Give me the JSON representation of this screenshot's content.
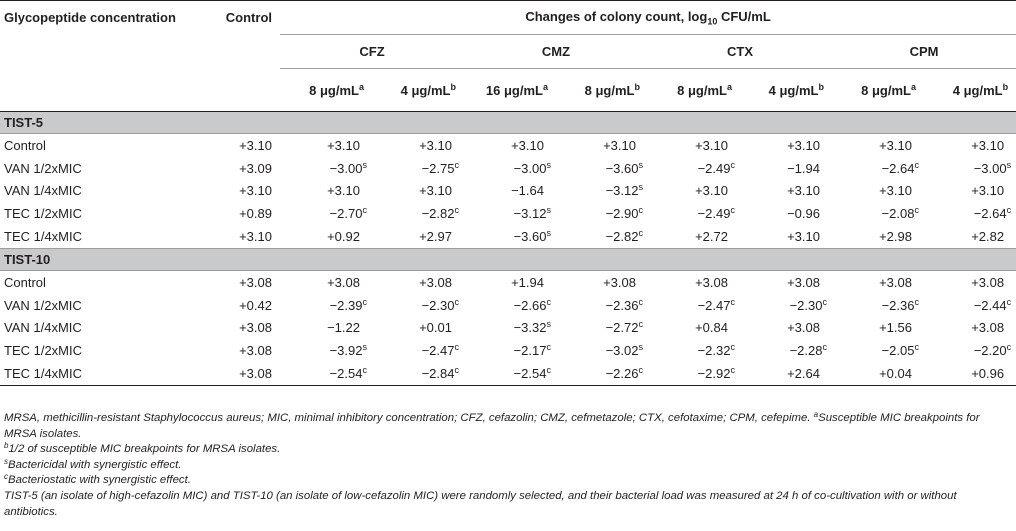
{
  "header": {
    "col_glyco": "Glycopeptide concentration",
    "col_control": "Control",
    "col_changes_prefix": "Changes of colony count, log",
    "col_changes_sub": "10",
    "col_changes_suffix": " CFU/mL",
    "groups": [
      "CFZ",
      "CMZ",
      "CTX",
      "CPM"
    ],
    "doses": [
      {
        "value": "8 μg/mL",
        "mark": "a"
      },
      {
        "value": "4 μg/mL",
        "mark": "b"
      },
      {
        "value": "16 μg/mL",
        "mark": "a"
      },
      {
        "value": "8 μg/mL",
        "mark": "b"
      },
      {
        "value": "8 μg/mL",
        "mark": "a"
      },
      {
        "value": "4 μg/mL",
        "mark": "b"
      },
      {
        "value": "8 μg/mL",
        "mark": "a"
      },
      {
        "value": "4 μg/mL",
        "mark": "b"
      }
    ]
  },
  "sections": [
    {
      "title": "TIST-5",
      "rows": [
        {
          "label": "Control",
          "control": "+3.10",
          "cells": [
            [
              "+3.10",
              ""
            ],
            [
              "+3.10",
              ""
            ],
            [
              "+3.10",
              ""
            ],
            [
              "+3.10",
              ""
            ],
            [
              "+3.10",
              ""
            ],
            [
              "+3.10",
              ""
            ],
            [
              "+3.10",
              ""
            ],
            [
              "+3.10",
              ""
            ]
          ]
        },
        {
          "label": "VAN 1/2xMIC",
          "control": "+3.09",
          "cells": [
            [
              "−3.00",
              "s"
            ],
            [
              "−2.75",
              "c"
            ],
            [
              "−3.00",
              "s"
            ],
            [
              "−3.60",
              "s"
            ],
            [
              "−2.49",
              "c"
            ],
            [
              "−1.94",
              ""
            ],
            [
              "−2.64",
              "c"
            ],
            [
              "−3.00",
              "s"
            ]
          ]
        },
        {
          "label": "VAN 1/4xMIC",
          "control": "+3.10",
          "cells": [
            [
              "+3.10",
              ""
            ],
            [
              "+3.10",
              ""
            ],
            [
              "−1.64",
              ""
            ],
            [
              "−3.12",
              "s"
            ],
            [
              "+3.10",
              ""
            ],
            [
              "+3.10",
              ""
            ],
            [
              "+3.10",
              ""
            ],
            [
              "+3.10",
              ""
            ]
          ]
        },
        {
          "label": "TEC 1/2xMIC",
          "control": "+0.89",
          "cells": [
            [
              "−2.70",
              "c"
            ],
            [
              "−2.82",
              "c"
            ],
            [
              "−3.12",
              "s"
            ],
            [
              "−2.90",
              "c"
            ],
            [
              "−2.49",
              "c"
            ],
            [
              "−0.96",
              ""
            ],
            [
              "−2.08",
              "c"
            ],
            [
              "−2.64",
              "c"
            ]
          ]
        },
        {
          "label": "TEC 1/4xMIC",
          "control": "+3.10",
          "cells": [
            [
              "+0.92",
              ""
            ],
            [
              "+2.97",
              ""
            ],
            [
              "−3.60",
              "s"
            ],
            [
              "−2.82",
              "c"
            ],
            [
              "+2.72",
              ""
            ],
            [
              "+3.10",
              ""
            ],
            [
              "+2.98",
              ""
            ],
            [
              "+2.82",
              ""
            ]
          ]
        }
      ]
    },
    {
      "title": "TIST-10",
      "rows": [
        {
          "label": "Control",
          "control": "+3.08",
          "cells": [
            [
              "+3.08",
              ""
            ],
            [
              "+3.08",
              ""
            ],
            [
              "+1.94",
              ""
            ],
            [
              "+3.08",
              ""
            ],
            [
              "+3.08",
              ""
            ],
            [
              "+3.08",
              ""
            ],
            [
              "+3.08",
              ""
            ],
            [
              "+3.08",
              ""
            ]
          ]
        },
        {
          "label": "VAN 1/2xMIC",
          "control": "+0.42",
          "cells": [
            [
              "−2.39",
              "c"
            ],
            [
              "−2.30",
              "c"
            ],
            [
              "−2.66",
              "c"
            ],
            [
              "−2.36",
              "c"
            ],
            [
              "−2.47",
              "c"
            ],
            [
              "−2.30",
              "c"
            ],
            [
              "−2.36",
              "c"
            ],
            [
              "−2.44",
              "c"
            ]
          ]
        },
        {
          "label": "VAN 1/4xMIC",
          "control": "+3.08",
          "cells": [
            [
              "−1.22",
              ""
            ],
            [
              "+0.01",
              ""
            ],
            [
              "−3.32",
              "s"
            ],
            [
              "−2.72",
              "c"
            ],
            [
              "+0.84",
              ""
            ],
            [
              "+3.08",
              ""
            ],
            [
              "+1.56",
              ""
            ],
            [
              "+3.08",
              ""
            ]
          ]
        },
        {
          "label": "TEC 1/2xMIC",
          "control": "+3.08",
          "cells": [
            [
              "−3.92",
              "s"
            ],
            [
              "−2.47",
              "c"
            ],
            [
              "−2.17",
              "c"
            ],
            [
              "−3.02",
              "s"
            ],
            [
              "−2.32",
              "c"
            ],
            [
              "−2.28",
              "c"
            ],
            [
              "−2.05",
              "c"
            ],
            [
              "−2.20",
              "c"
            ]
          ]
        },
        {
          "label": "TEC 1/4xMIC",
          "control": "+3.08",
          "cells": [
            [
              "−2.54",
              "c"
            ],
            [
              "−2.84",
              "c"
            ],
            [
              "−2.54",
              "c"
            ],
            [
              "−2.26",
              "c"
            ],
            [
              "−2.92",
              "c"
            ],
            [
              "+2.64",
              ""
            ],
            [
              "+0.04",
              ""
            ],
            [
              "+0.96",
              ""
            ]
          ]
        }
      ]
    }
  ],
  "notes": {
    "abbrev": "MRSA, methicillin-resistant Staphylococcus aureus; MIC, minimal inhibitory concentration; CFZ, cefazolin; CMZ, cefmetazole; CTX, cefotaxime; CPM, cefepime. ",
    "a_mark": "a",
    "a_text": "Susceptible MIC breakpoints for MRSA isolates.",
    "b_mark": "b",
    "b_text": "1/2 of susceptible MIC breakpoints for MRSA isolates.",
    "s_mark": "s",
    "s_text": "Bactericidal with synergistic effect.",
    "c_mark": "c",
    "c_text": "Bacteriostatic with synergistic effect.",
    "tist": "TIST-5 (an isolate of high-cefazolin MIC) and TIST-10 (an isolate of low-cefazolin MIC) were randomly selected, and their bacterial load was measured at 24 h of co-cultivation with or without antibiotics."
  }
}
